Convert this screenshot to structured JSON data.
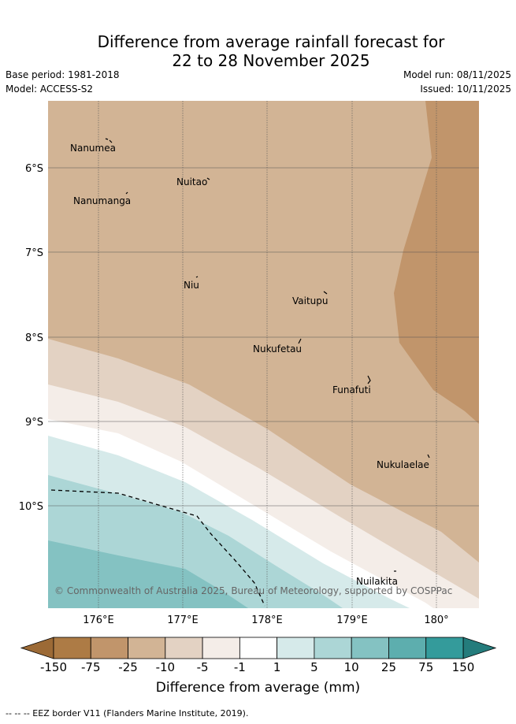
{
  "title": {
    "line1": "Difference from average rainfall forecast for",
    "line2": "22 to 28 November 2025"
  },
  "meta": {
    "base_period": "Base period: 1981-2018",
    "model": "Model: ACCESS-S2",
    "model_run": "Model run: 08/11/2025",
    "issued": "Issued: 10/11/2025"
  },
  "map": {
    "lat_labels": [
      "6°S",
      "7°S",
      "8°S",
      "9°S",
      "10°S"
    ],
    "lon_labels": [
      "176°E",
      "177°E",
      "178°E",
      "179°E",
      "180°"
    ],
    "places": [
      {
        "name": "Nanumea"
      },
      {
        "name": "Nuitao"
      },
      {
        "name": "Nanumanga"
      },
      {
        "name": "Niu"
      },
      {
        "name": "Vaitupu"
      },
      {
        "name": "Nukufetau"
      },
      {
        "name": "Funafuti"
      },
      {
        "name": "Nukulaelae"
      },
      {
        "name": "Nuilakita"
      }
    ],
    "copyright": "© Commonwealth of Australia 2025, Bureau of Meteorology, supported by COSPPac"
  },
  "legend": {
    "title": "Difference from average (mm)",
    "ticks": [
      "-150",
      "-75",
      "-25",
      "-10",
      "-5",
      "-1",
      "1",
      "5",
      "10",
      "25",
      "75",
      "150"
    ],
    "colors": [
      "#ad7b45",
      "#c1956b",
      "#d2b495",
      "#e3d2c3",
      "#f4ede8",
      "#ffffff",
      "#d6eaea",
      "#acd6d6",
      "#84c2c2",
      "#5daeae",
      "#349b9b"
    ],
    "under_color": "#9c6a36",
    "over_color": "#247c7c"
  },
  "footnote": "-- -- -- EEZ border V11 (Flanders Marine Institute, 2019)."
}
